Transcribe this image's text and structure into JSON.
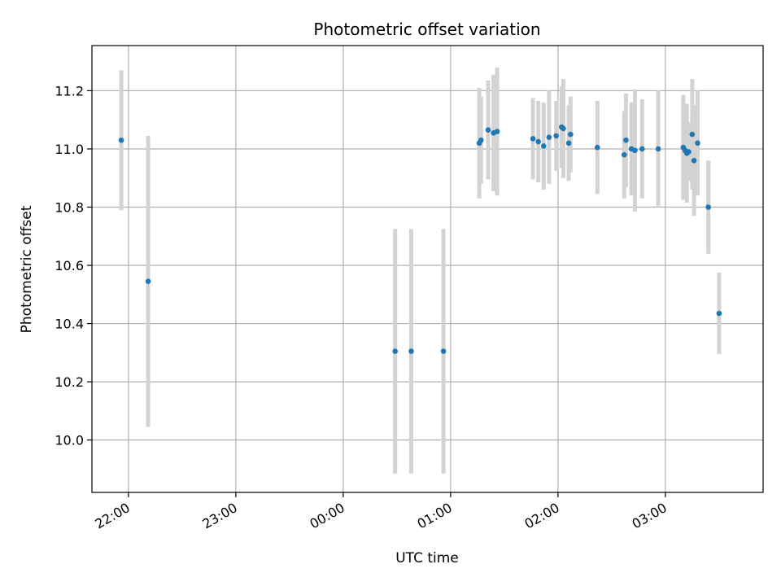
{
  "chart_data": {
    "type": "scatter",
    "title": "Photometric offset variation",
    "xlabel": "UTC time",
    "ylabel": "Photometric offset",
    "grid": true,
    "x_ticks": [
      "22:00",
      "23:00",
      "00:00",
      "01:00",
      "02:00",
      "03:00"
    ],
    "x_tick_hours": [
      22,
      23,
      24,
      25,
      26,
      27
    ],
    "xlim_hours": [
      21.66,
      27.91
    ],
    "y_ticks": [
      "10.0",
      "10.2",
      "10.4",
      "10.6",
      "10.8",
      "11.0",
      "11.2"
    ],
    "y_tick_values": [
      10.0,
      10.2,
      10.4,
      10.6,
      10.8,
      11.0,
      11.2
    ],
    "ylim": [
      9.82,
      11.355
    ],
    "colors": {
      "point": "#1f77b4",
      "errorbar": "#d3d3d3",
      "grid": "#b0b0b0"
    },
    "series": [
      {
        "x": [
          "21:56",
          "22:11",
          "00:29",
          "00:38",
          "00:56",
          "01:16",
          "01:17",
          "01:21",
          "01:24",
          "01:26",
          "01:46",
          "01:49",
          "01:52",
          "01:55",
          "01:59",
          "02:02",
          "02:03",
          "02:06",
          "02:07",
          "02:22",
          "02:37",
          "02:38",
          "02:41",
          "02:43",
          "02:47",
          "02:56",
          "03:10",
          "03:11",
          "03:12",
          "03:13",
          "03:15",
          "03:16",
          "03:18",
          "03:24",
          "03:30"
        ],
        "y": [
          11.03,
          10.545,
          10.305,
          10.305,
          10.305,
          11.02,
          11.03,
          11.065,
          11.055,
          11.06,
          11.035,
          11.025,
          11.01,
          11.04,
          11.045,
          11.075,
          11.07,
          11.02,
          11.05,
          11.005,
          10.98,
          11.03,
          11.0,
          10.995,
          11.0,
          11.0,
          11.005,
          10.995,
          10.985,
          10.99,
          11.05,
          10.96,
          11.02,
          10.8,
          10.435
        ],
        "yerr": [
          0.24,
          0.5,
          0.42,
          0.42,
          0.42,
          0.19,
          0.15,
          0.17,
          0.2,
          0.22,
          0.14,
          0.14,
          0.15,
          0.16,
          0.12,
          0.14,
          0.17,
          0.13,
          0.13,
          0.16,
          0.15,
          0.16,
          0.16,
          0.21,
          0.17,
          0.2,
          0.18,
          0.16,
          0.17,
          0.1,
          0.19,
          0.19,
          0.18,
          0.16,
          0.14
        ]
      }
    ]
  }
}
